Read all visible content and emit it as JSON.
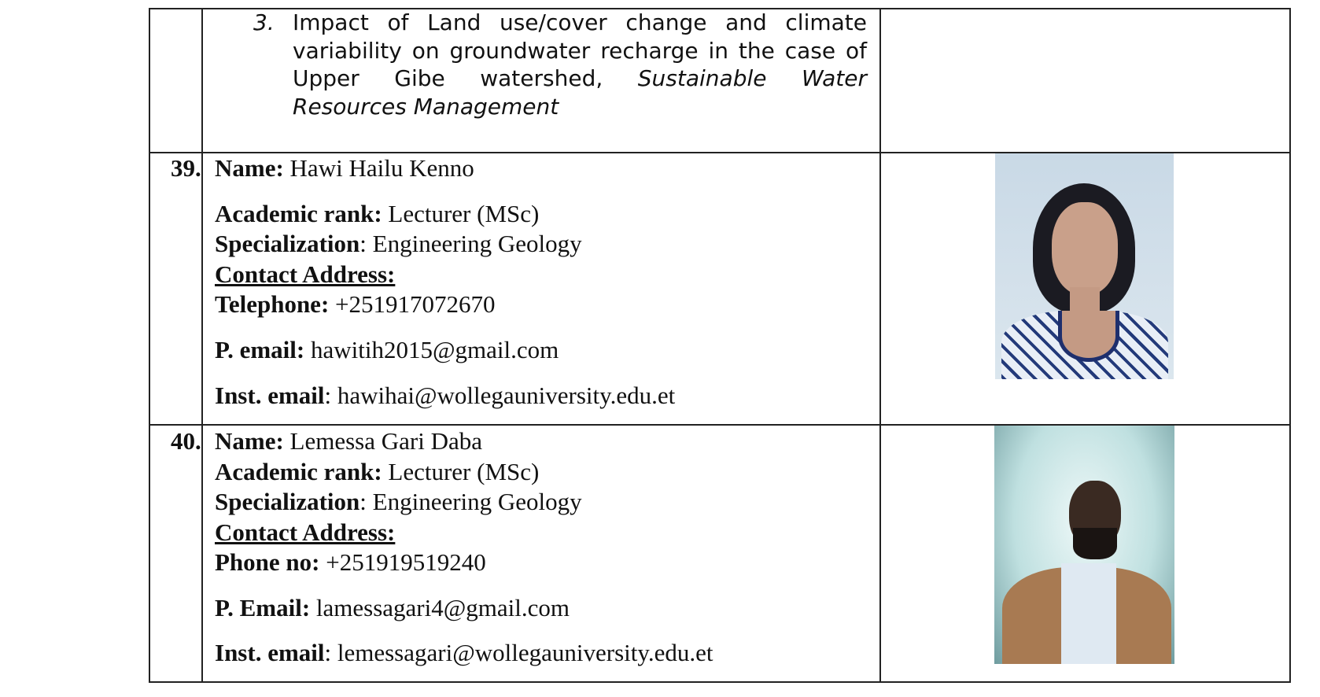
{
  "publication": {
    "number": "3.",
    "text": "Impact of Land use/cover change and climate variability on groundwater recharge in the case of Upper Gibe watershed, ",
    "journal": "Sustainable Water Resources Management"
  },
  "entries": [
    {
      "number": "39.",
      "name_label": "Name:",
      "name": " Hawi Hailu Kenno",
      "rank_label": "Academic rank:",
      "rank": " Lecturer (MSc)",
      "spec_label": "Specialization",
      "spec": ": Engineering Geology",
      "contact_label": "Contact Address: ",
      "phone_label": "Telephone:",
      "phone": " +251917072670",
      "pemail_label": "P. email:",
      "pemail": " hawitih2015@gmail.com",
      "iemail_label": "Inst. email",
      "iemail": ": hawihai@wollegauniversity.edu.et"
    },
    {
      "number": "40.",
      "name_label": "Name:",
      "name": " Lemessa Gari Daba",
      "rank_label": "Academic rank:",
      "rank": " Lecturer (MSc)",
      "spec_label": "Specialization",
      "spec": ": Engineering Geology",
      "contact_label": "Contact Address: ",
      "phone_label": "Phone no:",
      "phone": " +251919519240",
      "pemail_label": "P. Email:",
      "pemail": " lamessagari4@gmail.com",
      "iemail_label": "Inst. email",
      "iemail": ": lemessagari@wollegauniversity.edu.et"
    }
  ]
}
